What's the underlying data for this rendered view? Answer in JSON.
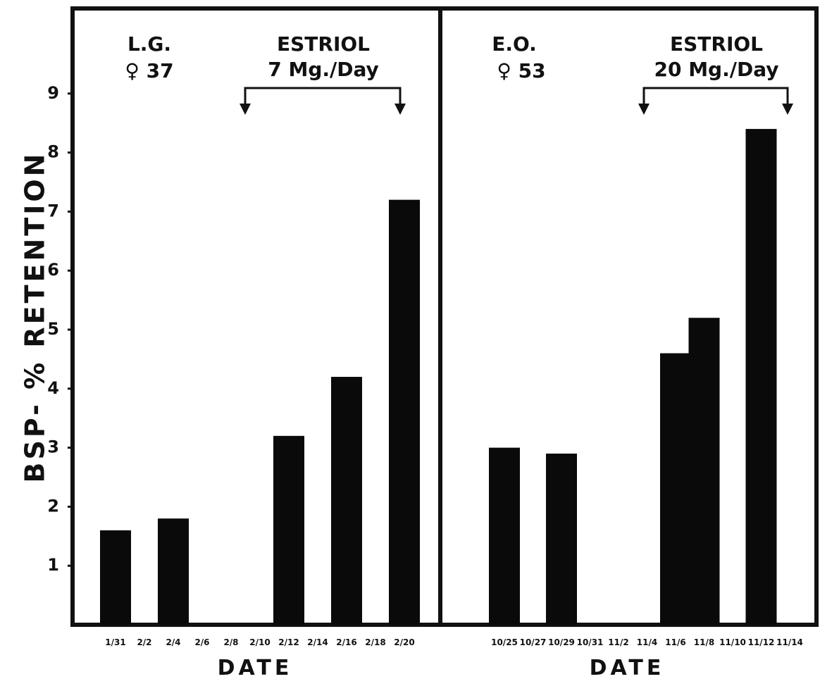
{
  "chart_data": [
    {
      "type": "bar",
      "patient": "L.G.",
      "subject": "♀ 37",
      "treatment": "ESTRIOL",
      "dose": "7 Mg./Day",
      "categories": [
        "1/31",
        "2/2",
        "2/4",
        "2/6",
        "2/8",
        "2/10",
        "2/12",
        "2/14",
        "2/16",
        "2/18",
        "2/20"
      ],
      "values": [
        1.6,
        null,
        1.8,
        null,
        null,
        null,
        3.2,
        null,
        4.2,
        null,
        7.2
      ],
      "xlabel": "DATE",
      "treatment_start": "2/10",
      "treatment_end": "2/20"
    },
    {
      "type": "bar",
      "patient": "E.O.",
      "subject": "♀ 53",
      "treatment": "ESTRIOL",
      "dose": "20 Mg./Day",
      "categories": [
        "10/25",
        "10/27",
        "10/29",
        "10/31",
        "11/2",
        "11/4",
        "11/6",
        "11/8",
        "11/10",
        "11/12",
        "11/14"
      ],
      "values": [
        3.0,
        null,
        2.9,
        null,
        null,
        null,
        4.6,
        5.2,
        null,
        8.4,
        null
      ],
      "xlabel": "DATE",
      "treatment_start": "11/4",
      "treatment_end": "11/14"
    }
  ],
  "ylabel": "BSP- % RETENTION",
  "yticks": [
    "1",
    "2",
    "3",
    "4",
    "5",
    "6",
    "7",
    "8",
    "9"
  ],
  "ylim": [
    0,
    10.5
  ]
}
